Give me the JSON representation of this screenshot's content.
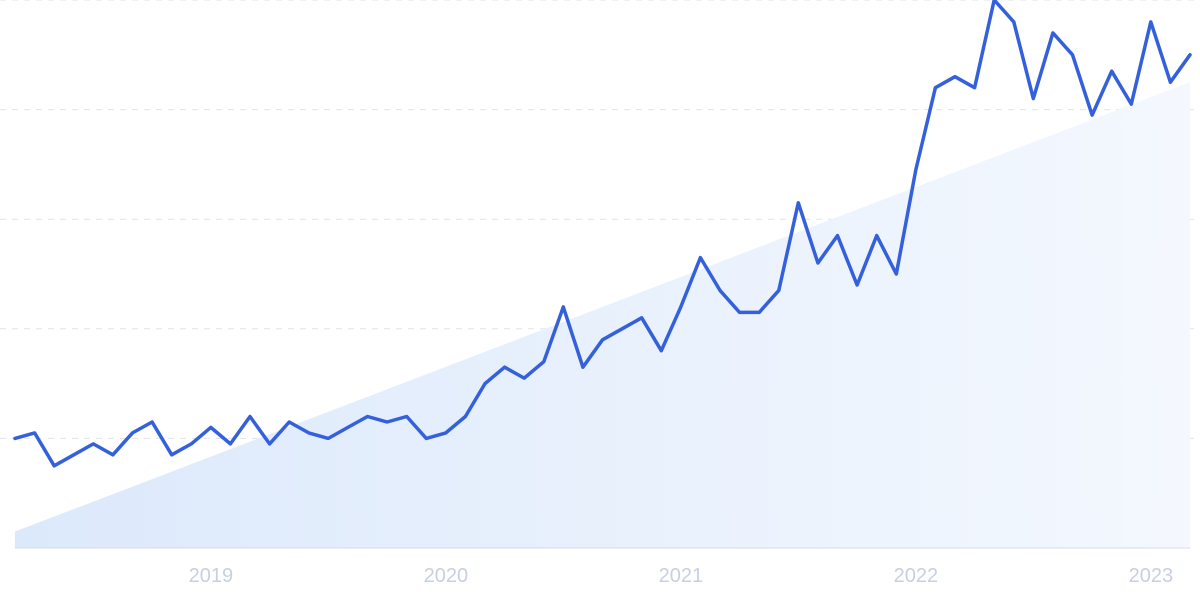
{
  "chart_data": {
    "type": "line",
    "title": "",
    "xlabel": "",
    "ylabel": "",
    "x_ticks": [
      "2019",
      "2020",
      "2021",
      "2022",
      "2023"
    ],
    "x_range": [
      "2018-03",
      "2023-03"
    ],
    "ylim": [
      0,
      100
    ],
    "grid": true,
    "colors": {
      "line": "#3461db",
      "trend_fill": "#dce9fb",
      "grid": "#dfe3ea",
      "tick_text": "#c7cfe0"
    },
    "trend": {
      "start": 3,
      "end": 85
    },
    "series": [
      {
        "x": [
          "2018-03",
          "2018-04",
          "2018-05",
          "2018-06",
          "2018-07",
          "2018-08",
          "2018-09",
          "2018-10",
          "2018-11",
          "2018-12",
          "2019-01",
          "2019-02",
          "2019-03",
          "2019-04",
          "2019-05",
          "2019-06",
          "2019-07",
          "2019-08",
          "2019-09",
          "2019-10",
          "2019-11",
          "2019-12",
          "2020-01",
          "2020-02",
          "2020-03",
          "2020-04",
          "2020-05",
          "2020-06",
          "2020-07",
          "2020-08",
          "2020-09",
          "2020-10",
          "2020-11",
          "2020-12",
          "2021-01",
          "2021-02",
          "2021-03",
          "2021-04",
          "2021-05",
          "2021-06",
          "2021-07",
          "2021-08",
          "2021-09",
          "2021-10",
          "2021-11",
          "2021-12",
          "2022-01",
          "2022-02",
          "2022-03",
          "2022-04",
          "2022-05",
          "2022-06",
          "2022-07",
          "2022-08",
          "2022-09",
          "2022-10",
          "2022-11",
          "2022-12",
          "2023-01",
          "2023-02",
          "2023-03"
        ],
        "values": [
          20,
          21,
          15,
          17,
          19,
          17,
          21,
          23,
          17,
          19,
          22,
          19,
          24,
          19,
          23,
          21,
          20,
          22,
          24,
          23,
          24,
          20,
          21,
          24,
          30,
          33,
          31,
          34,
          44,
          33,
          38,
          40,
          42,
          36,
          44,
          53,
          47,
          43,
          43,
          47,
          63,
          52,
          57,
          48,
          57,
          50,
          69,
          84,
          86,
          84,
          100,
          96,
          82,
          94,
          90,
          79,
          87,
          81,
          96,
          85,
          90
        ],
        "ylim_note": ""
      }
    ]
  }
}
